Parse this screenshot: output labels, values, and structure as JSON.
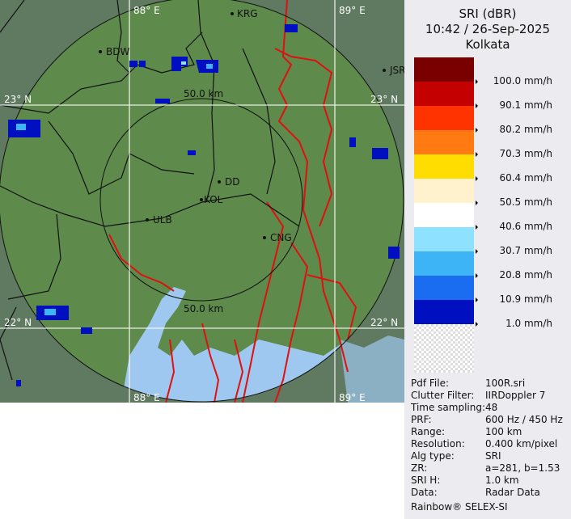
{
  "map": {
    "grid_labels": {
      "lon_88": "88° E",
      "lon_89": "89° E",
      "lat_23": "23° N",
      "lat_22": "22° N"
    },
    "range_rings": [
      "50.0 km",
      "50.0 km"
    ],
    "places": [
      "KRG",
      "BDW",
      "JSR",
      "DD",
      "KOL",
      "ULB",
      "CNG"
    ]
  },
  "legend": {
    "title": "SRI (dBR)",
    "datetime": "10:42 / 26-Sep-2025",
    "station": "Kolkata",
    "colors": [
      "#7a0000",
      "#c40000",
      "#ff3300",
      "#ff7a10",
      "#ffdd00",
      "#fff2cc",
      "#ffffff",
      "#8fe2ff",
      "#3cb4f5",
      "#1a6cf0",
      "#0010c0",
      "checker"
    ],
    "thresholds": [
      "100.0 mm/h",
      "90.1 mm/h",
      "80.2 mm/h",
      "70.3 mm/h",
      "60.4 mm/h",
      "50.5 mm/h",
      "40.6 mm/h",
      "30.7 mm/h",
      "20.8 mm/h",
      "10.9 mm/h",
      "1.0 mm/h"
    ]
  },
  "info": [
    {
      "k": "Pdf File:",
      "v": "100R.sri"
    },
    {
      "k": "Clutter Filter:",
      "v": "IIRDoppler 7"
    },
    {
      "k": "Time sampling:",
      "v": "48"
    },
    {
      "k": "PRF:",
      "v": "600 Hz / 450 Hz"
    },
    {
      "k": "Range:",
      "v": "100 km"
    },
    {
      "k": "Resolution:",
      "v": "0.400 km/pixel"
    },
    {
      "k": "Alg type:",
      "v": "SRI"
    },
    {
      "k": "ZR:",
      "v": "a=281, b=1.53"
    },
    {
      "k": "SRI H:",
      "v": "1.0 km"
    },
    {
      "k": "Data:",
      "v": "Radar Data"
    }
  ],
  "footer": "Rainbow® SELEX-SI"
}
